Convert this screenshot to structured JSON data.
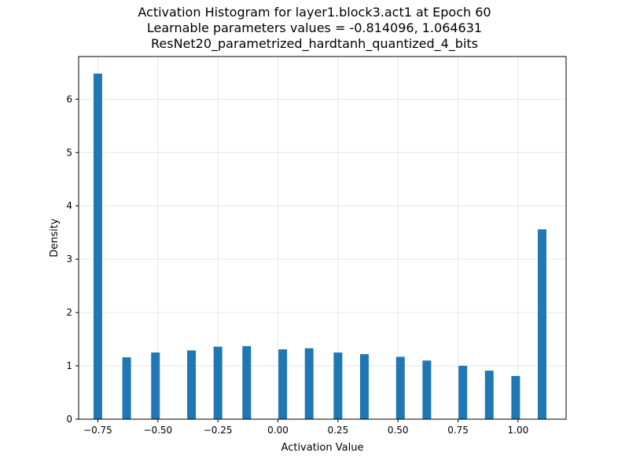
{
  "chart_data": {
    "type": "bar",
    "title": "Activation Histogram for layer1.block3.act1 at Epoch 60",
    "subtitle_lines": [
      "Learnable parameters values = -0.814096, 1.064631",
      "ResNet20_parametrized_hardtanh_quantized_4_bits"
    ],
    "xlabel": "Activation Value",
    "ylabel": "Density",
    "xlim": [
      -0.83,
      1.2
    ],
    "ylim": [
      0,
      6.8
    ],
    "xticks": [
      -0.75,
      -0.5,
      -0.25,
      0.0,
      0.25,
      0.5,
      0.75,
      1.0
    ],
    "xtick_labels": [
      "−0.75",
      "−0.50",
      "−0.25",
      "0.00",
      "0.25",
      "0.50",
      "0.75",
      "1.00"
    ],
    "yticks": [
      0,
      1,
      2,
      3,
      4,
      5,
      6
    ],
    "ytick_labels": [
      "0",
      "1",
      "2",
      "3",
      "4",
      "5",
      "6"
    ],
    "grid": true,
    "color": "#1f77b4",
    "bin_width": 0.036,
    "bars": [
      {
        "x": -0.75,
        "value": 6.48
      },
      {
        "x": -0.63,
        "value": 1.16
      },
      {
        "x": -0.51,
        "value": 1.25
      },
      {
        "x": -0.36,
        "value": 1.29
      },
      {
        "x": -0.25,
        "value": 1.36
      },
      {
        "x": -0.13,
        "value": 1.37
      },
      {
        "x": 0.02,
        "value": 1.31
      },
      {
        "x": 0.13,
        "value": 1.33
      },
      {
        "x": 0.25,
        "value": 1.25
      },
      {
        "x": 0.36,
        "value": 1.22
      },
      {
        "x": 0.51,
        "value": 1.17
      },
      {
        "x": 0.62,
        "value": 1.1
      },
      {
        "x": 0.77,
        "value": 1.0
      },
      {
        "x": 0.88,
        "value": 0.91
      },
      {
        "x": 0.99,
        "value": 0.81
      },
      {
        "x": 1.1,
        "value": 3.56
      }
    ]
  }
}
